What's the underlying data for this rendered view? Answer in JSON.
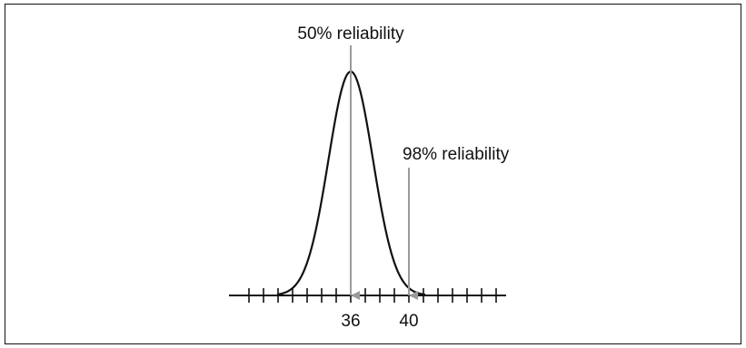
{
  "diagram": {
    "labels": {
      "peak": "50% reliability",
      "tail": "98% reliability"
    },
    "axis": {
      "tick_labels": [
        "36",
        "40"
      ]
    },
    "colors": {
      "curve": "#111111",
      "arrow": "#9a9a9a",
      "axis": "#111111"
    }
  }
}
